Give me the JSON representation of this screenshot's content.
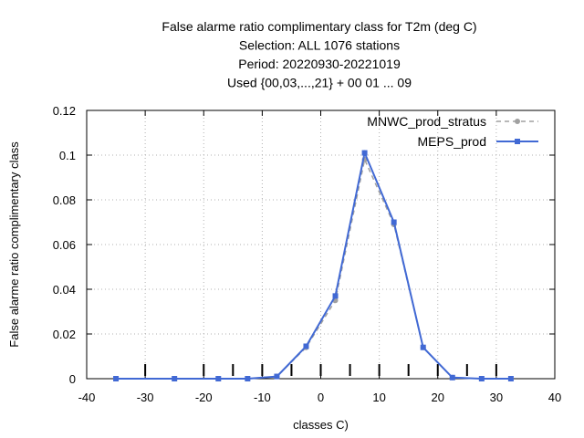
{
  "chart_data": {
    "type": "line",
    "title": [
      "False alarme ratio complimentary class  for T2m (deg C)",
      "Selection: ALL    1076 stations",
      "Period: 20220930-20221019",
      "Used {00,03,...,21} + 00 01 ... 09"
    ],
    "xlabel": "classes C)",
    "ylabel": "False alarme ratio complimentary class",
    "xlim": [
      -40,
      40
    ],
    "ylim": [
      0,
      0.12
    ],
    "xticks": [
      -40,
      -30,
      -20,
      -10,
      0,
      10,
      20,
      30,
      40
    ],
    "xtick_labels": [
      "-40",
      "-30",
      "-20",
      "-10",
      "0",
      "10",
      "20",
      "30",
      "40"
    ],
    "yticks": [
      0,
      0.02,
      0.04,
      0.06,
      0.08,
      0.1,
      0.12
    ],
    "ytick_labels": [
      "0",
      "0.02",
      "0.04",
      "0.06",
      "0.08",
      "0.1",
      "0.12"
    ],
    "grid": true,
    "legend": "top-right",
    "class_boundaries": [
      -30,
      -20,
      -15,
      -10,
      -5,
      0,
      5,
      10,
      15,
      20,
      25,
      30
    ],
    "x": [
      -35,
      -25,
      -17.5,
      -12.5,
      -7.5,
      -2.5,
      2.5,
      7.5,
      12.5,
      17.5,
      22.5,
      27.5,
      32.5
    ],
    "series": [
      {
        "name": "MNWC_prod_stratus",
        "color": "#a0a0a0",
        "style": "dashed",
        "values": [
          0,
          0,
          0,
          0,
          0.001,
          0.014,
          0.035,
          0.098,
          0.069,
          0.014,
          0.0005,
          0,
          0
        ]
      },
      {
        "name": "MEPS_prod",
        "color": "#4169d4",
        "style": "solid",
        "values": [
          0,
          0,
          0,
          0,
          0.001,
          0.0145,
          0.037,
          0.101,
          0.07,
          0.014,
          0.0005,
          0,
          0
        ]
      }
    ]
  }
}
